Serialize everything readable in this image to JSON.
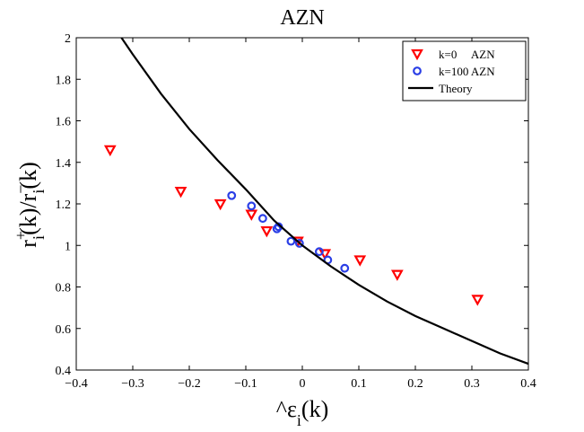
{
  "chart_data": {
    "type": "scatter",
    "title": "AZN",
    "xlabel": "^ε_i(k)",
    "ylabel": "r_i^+(k)/r_i^-(k)",
    "xlim": [
      -0.4,
      0.4
    ],
    "ylim": [
      0.4,
      2.0
    ],
    "xticks": [
      -0.4,
      -0.3,
      -0.2,
      -0.1,
      0,
      0.1,
      0.2,
      0.3,
      0.4
    ],
    "xtick_labels": [
      "−0.4",
      "−0.3",
      "−0.2",
      "−0.1",
      "0",
      "0.1",
      "0.2",
      "0.3",
      "0.4"
    ],
    "yticks": [
      0.4,
      0.6,
      0.8,
      1.0,
      1.2,
      1.4,
      1.6,
      1.8,
      2.0
    ],
    "ytick_labels": [
      "0.4",
      "0.6",
      "0.8",
      "1",
      "1.2",
      "1.4",
      "1.6",
      "1.8",
      "2"
    ],
    "grid": false,
    "legend_position": "top-right",
    "series": [
      {
        "name": "k=0     AZN",
        "kind": "scatter",
        "marker": "triangle-down",
        "color": "#ff0000",
        "points": [
          [
            -0.34,
            1.46
          ],
          [
            -0.215,
            1.26
          ],
          [
            -0.145,
            1.2
          ],
          [
            -0.09,
            1.15
          ],
          [
            -0.063,
            1.07
          ],
          [
            -0.008,
            1.02
          ],
          [
            0.04,
            0.96
          ],
          [
            0.102,
            0.93
          ],
          [
            0.168,
            0.86
          ],
          [
            0.31,
            0.74
          ]
        ]
      },
      {
        "name": "k=100 AZN",
        "kind": "scatter",
        "marker": "circle",
        "color": "#2b3fe6",
        "points": [
          [
            -0.125,
            1.24
          ],
          [
            -0.09,
            1.19
          ],
          [
            -0.07,
            1.13
          ],
          [
            -0.045,
            1.08
          ],
          [
            -0.042,
            1.09
          ],
          [
            -0.02,
            1.02
          ],
          [
            -0.005,
            1.01
          ],
          [
            0.03,
            0.97
          ],
          [
            0.045,
            0.93
          ],
          [
            0.075,
            0.89
          ]
        ]
      },
      {
        "name": "Theory",
        "kind": "line",
        "color": "#000000",
        "points": [
          [
            -0.32,
            2.0
          ],
          [
            -0.3,
            1.92
          ],
          [
            -0.25,
            1.73
          ],
          [
            -0.2,
            1.56
          ],
          [
            -0.15,
            1.41
          ],
          [
            -0.1,
            1.27
          ],
          [
            -0.05,
            1.12
          ],
          [
            0.0,
            1.0
          ],
          [
            0.05,
            0.9
          ],
          [
            0.1,
            0.81
          ],
          [
            0.15,
            0.73
          ],
          [
            0.2,
            0.66
          ],
          [
            0.25,
            0.6
          ],
          [
            0.3,
            0.54
          ],
          [
            0.35,
            0.48
          ],
          [
            0.4,
            0.43
          ]
        ]
      }
    ]
  }
}
